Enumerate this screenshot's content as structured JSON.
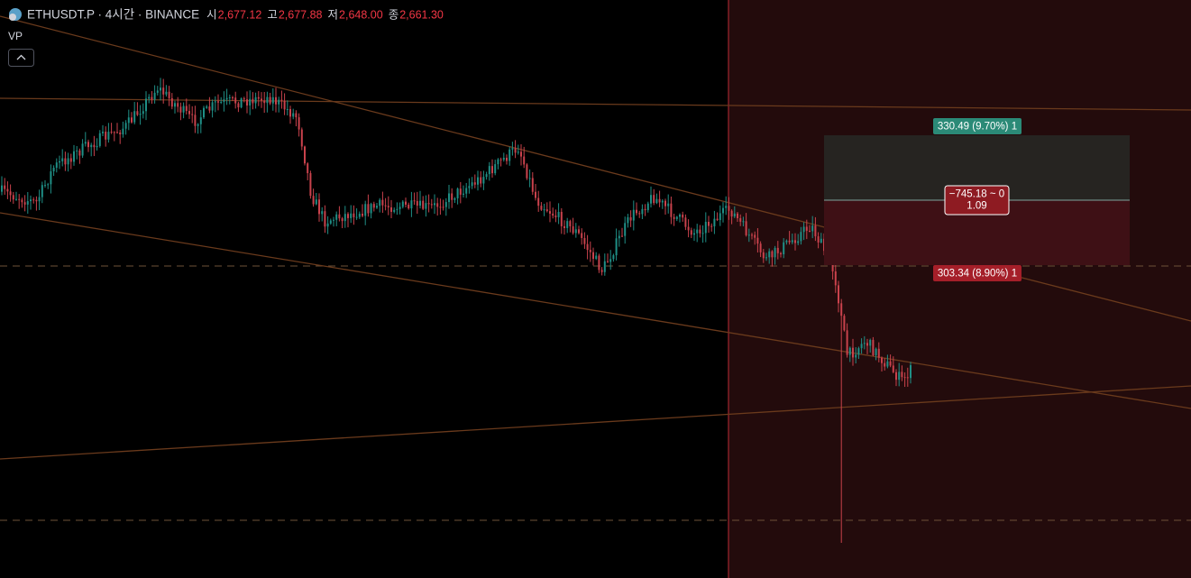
{
  "header": {
    "symbol": "ETHUSDT.P · 4시간 · BINANCE",
    "ohlc": [
      {
        "label": "시",
        "value": "2,677.12"
      },
      {
        "label": "고",
        "value": "2,677.88"
      },
      {
        "label": "저",
        "value": "2,648.00"
      },
      {
        "label": "종",
        "value": "2,661.30"
      }
    ]
  },
  "indicator": "VP",
  "position": {
    "target_label": "330.49 (9.70%) 1",
    "pnl": "−745.18 ~ 0",
    "ratio": "1.09",
    "stop_label": "303.34 (8.90%) 1"
  }
}
